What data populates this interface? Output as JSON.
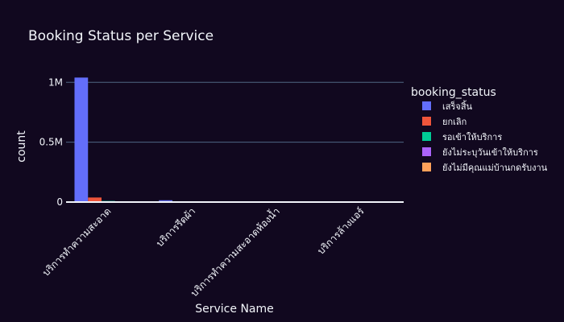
{
  "chart_data": {
    "type": "bar",
    "title": "Booking Status per Service",
    "xlabel": "Service Name",
    "ylabel": "count",
    "categories": [
      "บริการทำความสะอาด",
      "บริการรีดผ้า",
      "บริการทำความสะอาดห้องน้ำ",
      "บริการล้างแอร์"
    ],
    "ylim": [
      0,
      1150000
    ],
    "yticks": [
      0,
      500000,
      1000000
    ],
    "ytick_labels": [
      "0",
      "0.5M",
      "1M"
    ],
    "grid": true,
    "legend": {
      "title": "booking_status",
      "placement": "right"
    },
    "series": [
      {
        "name": "เสร็จสิ้น",
        "color": "#636efa",
        "values": [
          1040000,
          15000,
          4000,
          1500
        ]
      },
      {
        "name": "ยกเลิก",
        "color": "#ef553b",
        "values": [
          38000,
          1000,
          300,
          100
        ]
      },
      {
        "name": "รอเข้าให้บริการ",
        "color": "#00cc96",
        "values": [
          9000,
          300,
          100,
          50
        ]
      },
      {
        "name": "ยังไม่ระบุวันเข้าให้บริการ",
        "color": "#ab63fa",
        "values": [
          6000,
          200,
          80,
          30
        ]
      },
      {
        "name": "ยังไม่มีคุณแม่บ้านกดรับงาน",
        "color": "#ffa15a",
        "values": [
          3000,
          100,
          40,
          20
        ]
      }
    ]
  }
}
